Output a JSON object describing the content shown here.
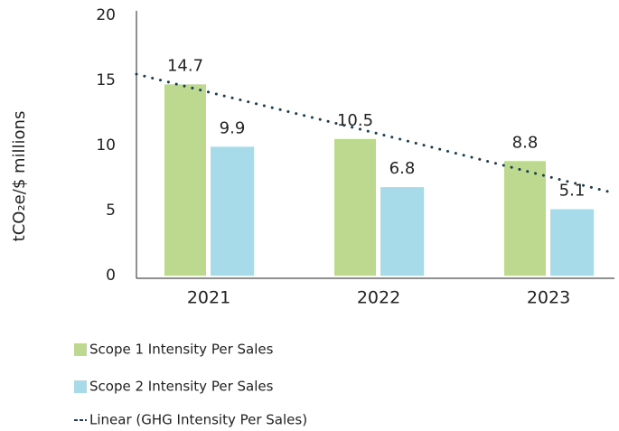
{
  "chart_data": {
    "type": "bar",
    "y_label": "tCO₂e/$ millions",
    "categories": [
      "2021",
      "2022",
      "2023"
    ],
    "series": [
      {
        "name": "Scope 1 Intensity Per Sales",
        "color": "#bcd98f",
        "values": [
          14.7,
          10.5,
          8.8
        ]
      },
      {
        "name": "Scope 2 Intensity Per Sales",
        "color": "#a8dbe9",
        "values": [
          9.9,
          6.8,
          5.1
        ]
      }
    ],
    "trendline": {
      "name": "Linear (GHG Intensity Per Sales)",
      "color": "#1b3d4f",
      "values": [
        14.1,
        10.9,
        7.6
      ]
    },
    "ylim": [
      0,
      20
    ],
    "yticks": [
      0,
      5,
      10,
      15,
      20
    ],
    "grid": false
  }
}
